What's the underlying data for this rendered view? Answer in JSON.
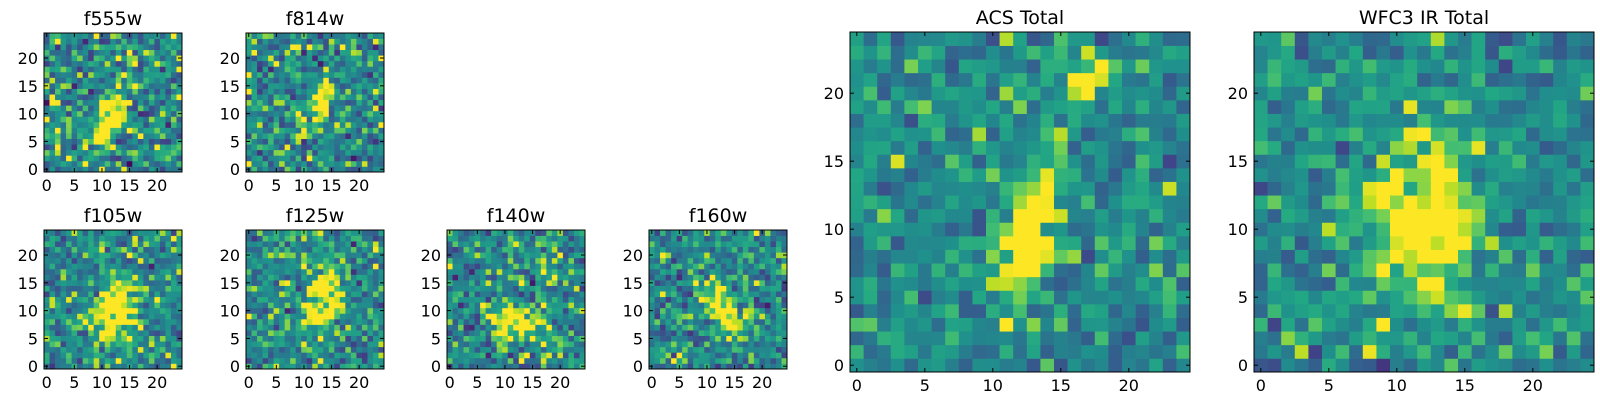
{
  "chart_data": [
    {
      "type": "heatmap",
      "title": "f555w",
      "colormap": "viridis",
      "xlim": [
        0,
        24
      ],
      "ylim": [
        0,
        24
      ],
      "x_ticks": [
        0,
        5,
        10,
        15,
        20
      ],
      "y_ticks": [
        0,
        5,
        10,
        15,
        20
      ],
      "source_feature": {
        "cx": 11.5,
        "cy": 9.5,
        "sx": 1.5,
        "sy": 4,
        "theta": 0.4
      },
      "noise": 0.3,
      "seed": 11
    },
    {
      "type": "heatmap",
      "title": "f814w",
      "colormap": "viridis",
      "xlim": [
        0,
        24
      ],
      "ylim": [
        0,
        24
      ],
      "x_ticks": [
        0,
        5,
        10,
        15,
        20
      ],
      "y_ticks": [
        0,
        5,
        10,
        15,
        20
      ],
      "source_feature": {
        "cx": 13,
        "cy": 11.5,
        "sx": 1.2,
        "sy": 3,
        "theta": 0.3
      },
      "noise": 0.28,
      "seed": 23
    },
    {
      "type": "heatmap",
      "title": "f105w",
      "colormap": "viridis",
      "xlim": [
        0,
        24
      ],
      "ylim": [
        0,
        24
      ],
      "x_ticks": [
        0,
        5,
        10,
        15,
        20
      ],
      "y_ticks": [
        0,
        5,
        10,
        15,
        20
      ],
      "source_feature": {
        "cx": 12.5,
        "cy": 10,
        "sx": 2.5,
        "sy": 4,
        "theta": 0.2
      },
      "noise": 0.25,
      "seed": 37
    },
    {
      "type": "heatmap",
      "title": "f125w",
      "colormap": "viridis",
      "xlim": [
        0,
        24
      ],
      "ylim": [
        0,
        24
      ],
      "x_ticks": [
        0,
        5,
        10,
        15,
        20
      ],
      "y_ticks": [
        0,
        5,
        10,
        15,
        20
      ],
      "source_feature": {
        "cx": 13.5,
        "cy": 12,
        "sx": 2,
        "sy": 4,
        "theta": 0.3
      },
      "noise": 0.25,
      "seed": 41
    },
    {
      "type": "heatmap",
      "title": "f140w",
      "colormap": "viridis",
      "xlim": [
        0,
        24
      ],
      "ylim": [
        0,
        24
      ],
      "x_ticks": [
        0,
        5,
        10,
        15,
        20
      ],
      "y_ticks": [
        0,
        5,
        10,
        15,
        20
      ],
      "source_feature": {
        "cx": 12,
        "cy": 8,
        "sx": 3,
        "sy": 2,
        "theta": 0.2
      },
      "noise": 0.27,
      "seed": 53
    },
    {
      "type": "heatmap",
      "title": "f160w",
      "colormap": "viridis",
      "xlim": [
        0,
        24
      ],
      "ylim": [
        0,
        24
      ],
      "x_ticks": [
        0,
        5,
        10,
        15,
        20
      ],
      "y_ticks": [
        0,
        5,
        10,
        15,
        20
      ],
      "source_feature": {
        "cx": 12.5,
        "cy": 11,
        "sx": 1.6,
        "sy": 4,
        "theta": -0.5
      },
      "noise": 0.25,
      "seed": 67
    },
    {
      "type": "heatmap",
      "title": "ACS Total",
      "colormap": "viridis",
      "xlim": [
        0,
        24
      ],
      "ylim": [
        0,
        24
      ],
      "x_ticks": [
        0,
        5,
        10,
        15,
        20
      ],
      "y_ticks": [
        0,
        5,
        10,
        15,
        20
      ],
      "source_feature": {
        "cx": 12.5,
        "cy": 9.5,
        "sx": 1.2,
        "sy": 3.5,
        "theta": 0.25,
        "cx2": 17,
        "cy2": 21,
        "amp2": 0.85
      },
      "noise": 0.2,
      "seed": 79
    },
    {
      "type": "heatmap",
      "title": "WFC3 IR Total",
      "colormap": "viridis",
      "xlim": [
        0,
        24
      ],
      "ylim": [
        0,
        24
      ],
      "x_ticks": [
        0,
        5,
        10,
        15,
        20
      ],
      "y_ticks": [
        0,
        5,
        10,
        15,
        20
      ],
      "source_feature": {
        "cx": 12,
        "cy": 10.5,
        "sx": 2.6,
        "sy": 3.8,
        "theta": 0.1
      },
      "noise": 0.2,
      "seed": 97
    }
  ]
}
